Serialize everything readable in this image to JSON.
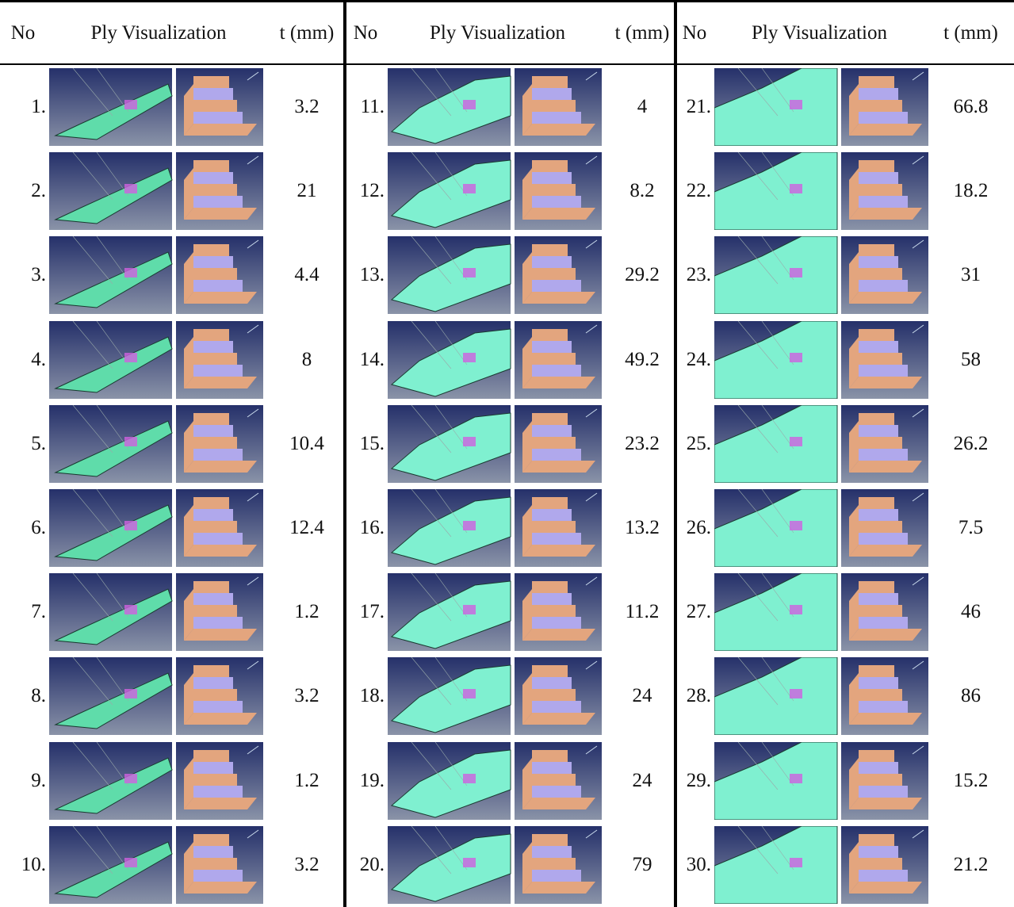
{
  "table": {
    "header": [
      "No",
      "Ply Visualization",
      "t (mm)",
      "No",
      "Ply Visualization",
      "t (mm)",
      "No",
      "Ply Visualization",
      "t (mm)"
    ],
    "rows": [
      [
        "1.",
        3.2,
        "11.",
        4,
        "21.",
        66.8
      ],
      [
        "2.",
        21,
        "12.",
        8.2,
        "22.",
        18.2
      ],
      [
        "3.",
        4.4,
        "13.",
        29.2,
        "23.",
        31
      ],
      [
        "4.",
        8,
        "14.",
        49.2,
        "24.",
        58
      ],
      [
        "5.",
        10.4,
        "15.",
        23.2,
        "25.",
        26.2
      ],
      [
        "6.",
        12.4,
        "16.",
        13.2,
        "26.",
        7.5
      ],
      [
        "7.",
        1.2,
        "17.",
        11.2,
        "27.",
        46
      ],
      [
        "8.",
        3.2,
        "18.",
        24,
        "28.",
        86
      ],
      [
        "9.",
        1.2,
        "19.",
        24,
        "29.",
        15.2
      ],
      [
        "10.",
        3.2,
        "20.",
        79,
        "30.",
        21.2
      ]
    ]
  }
}
